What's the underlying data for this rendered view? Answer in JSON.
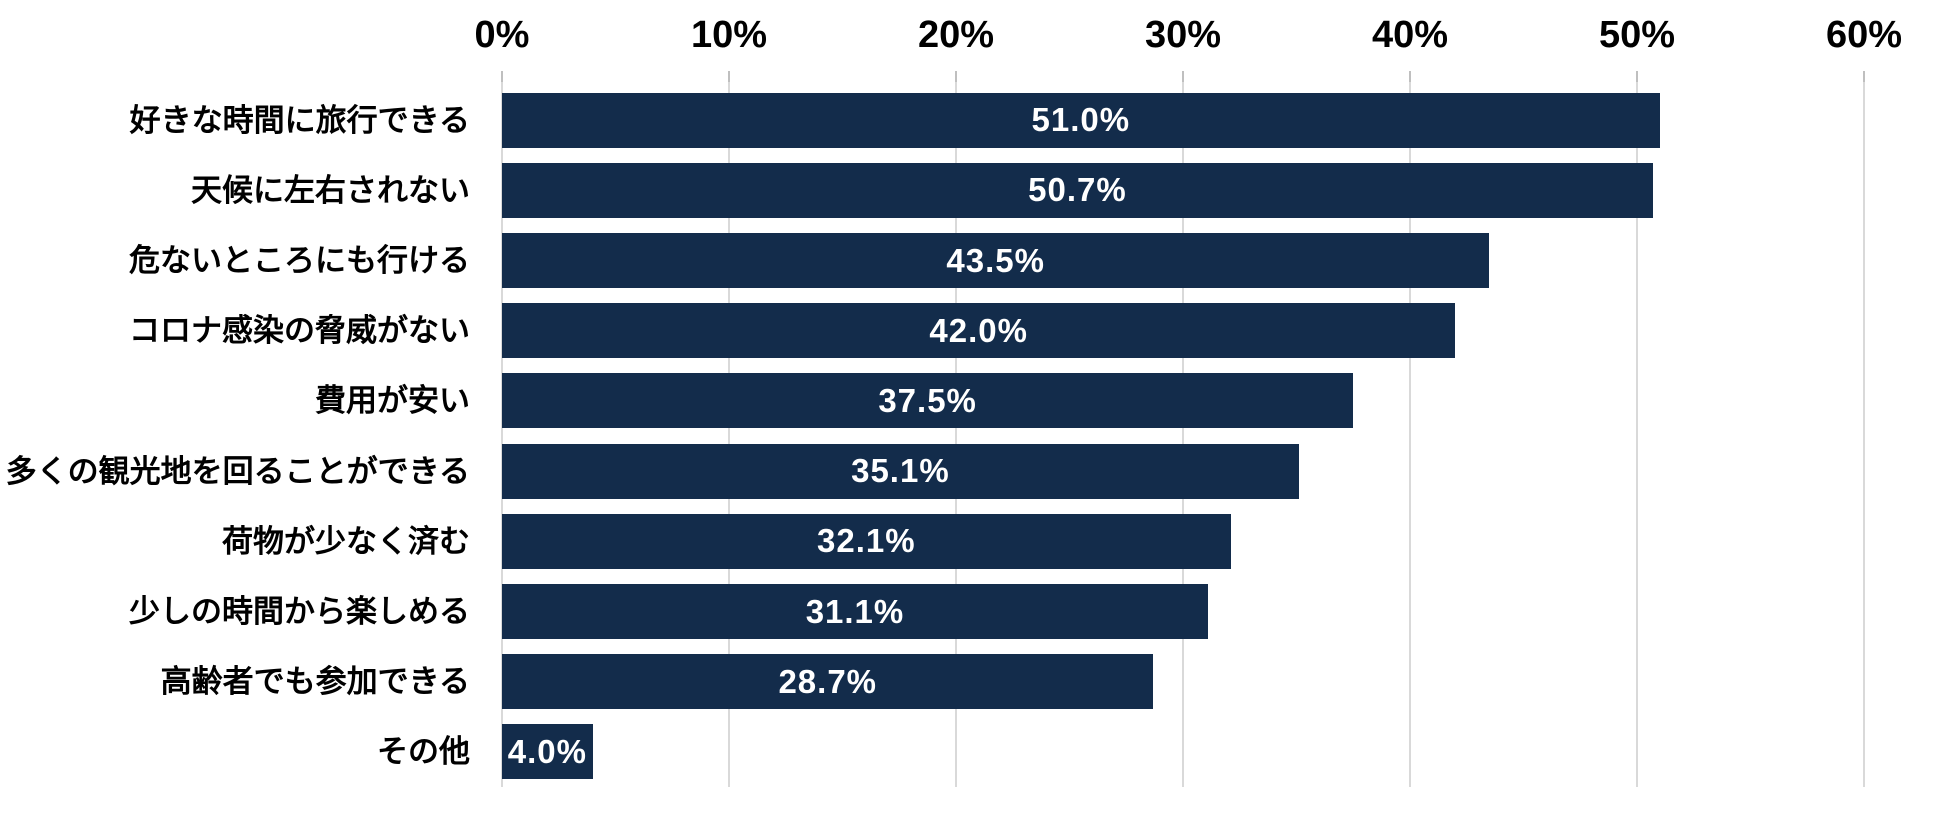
{
  "chart_data": {
    "type": "bar",
    "orientation": "horizontal",
    "title": "",
    "xlabel": "",
    "ylabel": "",
    "xlim": [
      0,
      60
    ],
    "grid": true,
    "legend": false,
    "x_ticks": [
      {
        "value": 0,
        "label": "0%"
      },
      {
        "value": 10,
        "label": "10%"
      },
      {
        "value": 20,
        "label": "20%"
      },
      {
        "value": 30,
        "label": "30%"
      },
      {
        "value": 40,
        "label": "40%"
      },
      {
        "value": 50,
        "label": "50%"
      },
      {
        "value": 60,
        "label": "60%"
      }
    ],
    "categories": [
      "好きな時間に旅行できる",
      "天候に左右されない",
      "危ないところにも行ける",
      "コロナ感染の脅威がない",
      "費用が安い",
      "多くの観光地を回ることができる",
      "荷物が少なく済む",
      "少しの時間から楽しめる",
      "高齢者でも参加できる",
      "その他"
    ],
    "values": [
      51.0,
      50.7,
      43.5,
      42.0,
      37.5,
      35.1,
      32.1,
      31.1,
      28.7,
      4.0
    ],
    "value_labels": [
      "51.0%",
      "50.7%",
      "43.5%",
      "42.0%",
      "37.5%",
      "35.1%",
      "32.1%",
      "31.1%",
      "28.7%",
      "4.0%"
    ],
    "colors": {
      "bar": "#132c4b",
      "gridline": "#d9d9d9",
      "tick_mark": "#bfbfbf",
      "axis_text": "#000000",
      "category_text": "#000000",
      "value_text": "#ffffff",
      "background": "#ffffff"
    }
  }
}
